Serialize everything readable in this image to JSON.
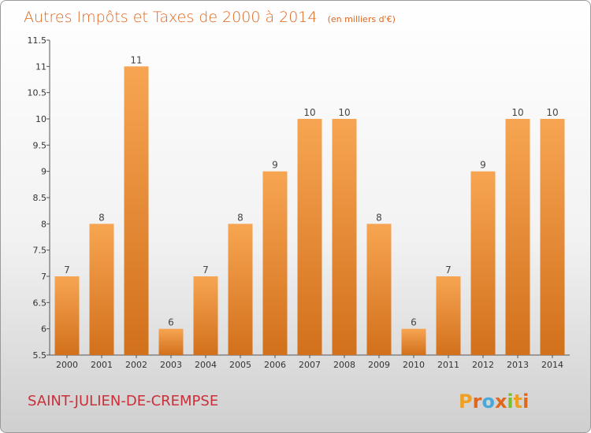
{
  "chart_data": {
    "type": "bar",
    "title": "Autres Impôts et Taxes de 2000 à 2014",
    "unit_note": "(en milliers d'€)",
    "categories": [
      "2000",
      "2001",
      "2002",
      "2003",
      "2004",
      "2005",
      "2006",
      "2007",
      "2008",
      "2009",
      "2010",
      "2011",
      "2012",
      "2013",
      "2014"
    ],
    "values": [
      7,
      8,
      11,
      6,
      7,
      8,
      9,
      10,
      10,
      8,
      6,
      7,
      9,
      10,
      10
    ],
    "ylim": [
      5.5,
      11.5
    ],
    "yticks": [
      "5.5",
      "6",
      "6.5",
      "7",
      "7.5",
      "8",
      "8.5",
      "9",
      "9.5",
      "10",
      "10.5",
      "11",
      "11.5"
    ],
    "grid": false,
    "bar_color_top": "#f7a552",
    "bar_color_bottom": "#d2701b"
  },
  "footer": {
    "commune": "SAINT-JULIEN-DE-CREMPSE",
    "logo": "Proxiti"
  },
  "colors": {
    "title": "#e0671e",
    "commune": "#c9303a",
    "logo_letters": [
      "#f0a020",
      "#e0671e",
      "#4aa8d8",
      "#e0671e",
      "#7bbf2f",
      "#f0a020",
      "#e0671e"
    ]
  }
}
